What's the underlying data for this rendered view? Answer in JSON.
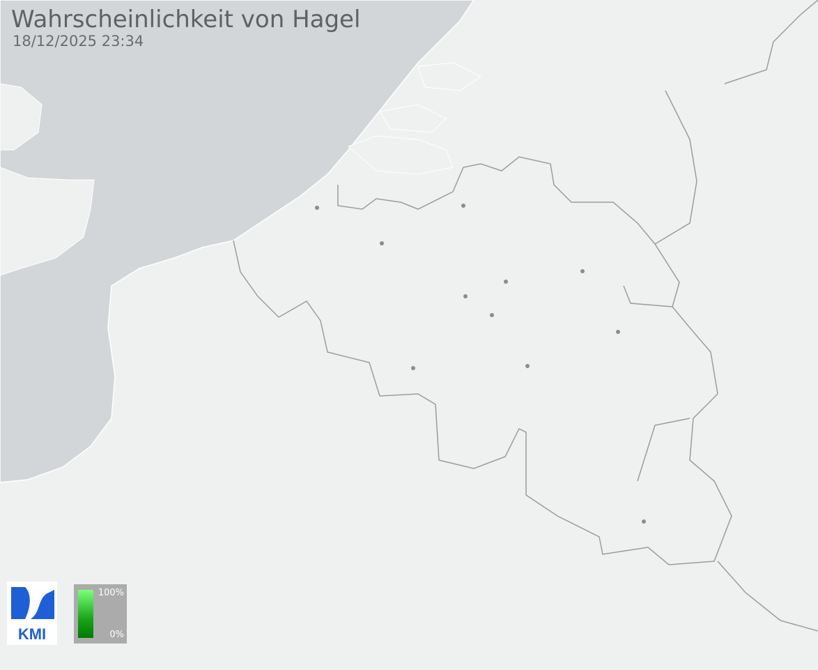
{
  "header": {
    "title": "Wahrscheinlichkeit von Hagel",
    "timestamp": "18/12/2025 23:34"
  },
  "colors": {
    "sea": "#d3d6d8",
    "land": "#eff0f0",
    "border": "#9a9c9e",
    "city": "#8a8c8e",
    "legend_high": "#7cff7c",
    "legend_low": "#007a00",
    "logo": "#1f5fd6"
  },
  "logo": {
    "text": "KMI"
  },
  "legend": {
    "max_label": "100%",
    "min_label": "0%"
  },
  "map": {
    "cities_count_shown": 11
  }
}
